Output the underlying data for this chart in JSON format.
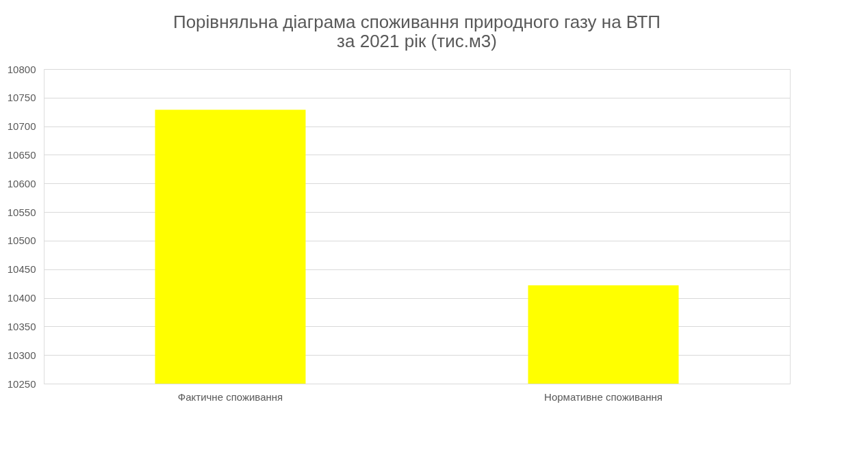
{
  "chart_data": {
    "type": "bar",
    "title": [
      "Порівняльна діаграма споживання природного газу на ВТП",
      "за 2021 рік (тис.м3)"
    ],
    "categories": [
      "Фактичне споживання",
      "Нормативне споживання"
    ],
    "values": [
      10729,
      10422
    ],
    "color": "#ffff00",
    "ylim": [
      10250,
      10800
    ],
    "yticks": [
      10250,
      10300,
      10350,
      10400,
      10450,
      10500,
      10550,
      10600,
      10650,
      10700,
      10750,
      10800
    ],
    "grid": "y"
  }
}
